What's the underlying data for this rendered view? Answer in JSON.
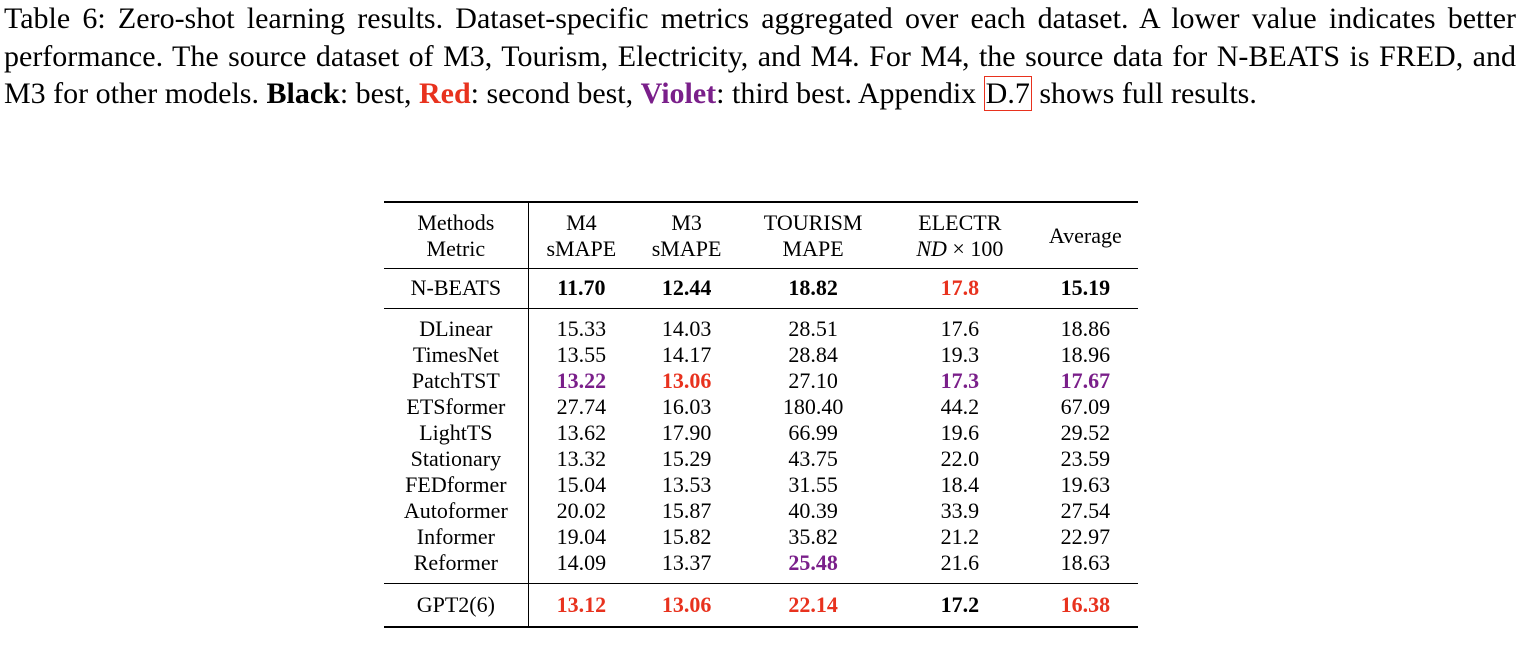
{
  "caption": {
    "part1": "Table 6: Zero-shot learning results. Dataset-specific metrics aggregated over each dataset. A lower value indicates better performance. The source dataset of M3, Tourism, Electricity, and M4. For M4, the source data for N-BEATS is FRED, and M3 for other models. ",
    "black_label": "Black",
    "black_text": ": best, ",
    "red_label": "Red",
    "red_text": ": second best, ",
    "violet_label": "Violet",
    "violet_text": ": third best. Appendix ",
    "ref": "D.7",
    "tail": " shows full results."
  },
  "header": {
    "methods": "Methods",
    "metric": "Metric",
    "average": "Average",
    "columns": [
      {
        "dataset": "M4",
        "metric": "sMAPE"
      },
      {
        "dataset": "M3",
        "metric": "sMAPE"
      },
      {
        "dataset": "TOURISM",
        "metric": "MAPE"
      },
      {
        "dataset": "ELECTR",
        "metric_italic": "ND",
        "metric_rest": " × 100"
      }
    ]
  },
  "rows": [
    {
      "method": "N-BEATS",
      "m4": "11.70",
      "m3": "12.44",
      "tourism": "18.82",
      "electr": "17.8",
      "avg": "15.19"
    },
    {
      "method": "DLinear",
      "m4": "15.33",
      "m3": "14.03",
      "tourism": "28.51",
      "electr": "17.6",
      "avg": "18.86"
    },
    {
      "method": "TimesNet",
      "m4": "13.55",
      "m3": "14.17",
      "tourism": "28.84",
      "electr": "19.3",
      "avg": "18.96"
    },
    {
      "method": "PatchTST",
      "m4": "13.22",
      "m3": "13.06",
      "tourism": "27.10",
      "electr": "17.3",
      "avg": "17.67"
    },
    {
      "method": "ETSformer",
      "m4": "27.74",
      "m3": "16.03",
      "tourism": "180.40",
      "electr": "44.2",
      "avg": "67.09"
    },
    {
      "method": "LightTS",
      "m4": "13.62",
      "m3": "17.90",
      "tourism": "66.99",
      "electr": "19.6",
      "avg": "29.52"
    },
    {
      "method": "Stationary",
      "m4": "13.32",
      "m3": "15.29",
      "tourism": "43.75",
      "electr": "22.0",
      "avg": "23.59"
    },
    {
      "method": "FEDformer",
      "m4": "15.04",
      "m3": "13.53",
      "tourism": "31.55",
      "electr": "18.4",
      "avg": "19.63"
    },
    {
      "method": "Autoformer",
      "m4": "20.02",
      "m3": "15.87",
      "tourism": "40.39",
      "electr": "33.9",
      "avg": "27.54"
    },
    {
      "method": "Informer",
      "m4": "19.04",
      "m3": "15.82",
      "tourism": "35.82",
      "electr": "21.2",
      "avg": "22.97"
    },
    {
      "method": "Reformer",
      "m4": "14.09",
      "m3": "13.37",
      "tourism": "25.48",
      "electr": "21.6",
      "avg": "18.63"
    },
    {
      "method": "GPT2(6)",
      "m4": "13.12",
      "m3": "13.06",
      "tourism": "22.14",
      "electr": "17.2",
      "avg": "16.38"
    }
  ],
  "colors": {
    "red": "#e8321e",
    "violet": "#7a1f8a",
    "black": "#000000"
  }
}
